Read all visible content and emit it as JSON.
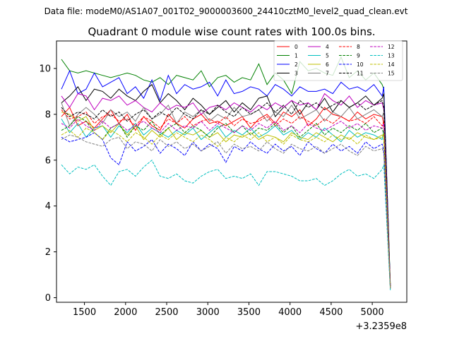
{
  "suptitle": "Data file: modeM0/AS1A07_001T02_9000003600_24410cztM0_level2_quad_clean.evt",
  "chart_data": {
    "type": "line",
    "title": "Quadrant 0 module wise count rates with 100.0s bins.",
    "xlabel": "",
    "ylabel": "",
    "x_offset_label": "+3.2359e8",
    "xlim": [
      1160,
      5420
    ],
    "ylim": [
      -0.2,
      11.2
    ],
    "xticks": [
      1500,
      2000,
      2500,
      3000,
      3500,
      4000,
      4500,
      5000
    ],
    "yticks": [
      0,
      2,
      4,
      6,
      8,
      10
    ],
    "grid": false,
    "legend_placement": "top-right",
    "legend_columns": 4,
    "x": [
      1220,
      1320,
      1420,
      1520,
      1620,
      1720,
      1820,
      1920,
      2020,
      2120,
      2220,
      2320,
      2420,
      2520,
      2620,
      2720,
      2820,
      2920,
      3020,
      3120,
      3220,
      3320,
      3420,
      3520,
      3620,
      3720,
      3820,
      3920,
      4020,
      4120,
      4220,
      4320,
      4420,
      4520,
      4620,
      4720,
      4820,
      4920,
      5020,
      5120,
      5140,
      5220
    ],
    "series": [
      {
        "name": "0",
        "color": "#ff0000",
        "dash": "solid",
        "values": [
          7.9,
          8.3,
          7.5,
          7.7,
          7.4,
          7.8,
          8.2,
          7.6,
          8.0,
          7.3,
          7.9,
          7.5,
          7.3,
          8.0,
          7.6,
          7.4,
          7.8,
          8.0,
          7.6,
          7.7,
          7.5,
          7.7,
          7.9,
          7.4,
          7.8,
          8.0,
          7.6,
          8.1,
          7.9,
          8.2,
          7.5,
          7.8,
          8.3,
          8.0,
          7.9,
          7.7,
          8.1,
          7.8,
          8.0,
          7.9,
          7.6,
          0.5
        ]
      },
      {
        "name": "1",
        "color": "#008000",
        "dash": "solid",
        "values": [
          10.4,
          9.9,
          9.8,
          9.9,
          9.8,
          9.7,
          9.6,
          9.7,
          9.8,
          9.7,
          9.5,
          9.4,
          9.6,
          9.3,
          9.7,
          9.6,
          9.5,
          9.9,
          9.2,
          9.6,
          9.7,
          9.4,
          9.6,
          9.5,
          10.2,
          9.3,
          9.8,
          9.5,
          8.9,
          10.3,
          9.9,
          10.0,
          9.8,
          9.7,
          10.5,
          9.6,
          9.9,
          9.5,
          9.8,
          9.3,
          9.1,
          0.6
        ]
      },
      {
        "name": "2",
        "color": "#0000ff",
        "dash": "solid",
        "values": [
          9.1,
          9.9,
          8.9,
          9.1,
          9.8,
          9.2,
          9.4,
          9.6,
          8.9,
          9.2,
          8.7,
          9.5,
          8.6,
          9.7,
          8.9,
          9.3,
          9.1,
          9.2,
          9.4,
          8.8,
          9.5,
          8.9,
          9.0,
          9.2,
          9.1,
          8.8,
          9.3,
          9.1,
          8.8,
          9.2,
          9.0,
          9.0,
          9.1,
          8.9,
          9.4,
          9.1,
          9.2,
          9.0,
          9.3,
          8.8,
          9.2,
          0.5
        ]
      },
      {
        "name": "3",
        "color": "#000000",
        "dash": "solid",
        "values": [
          8.5,
          8.8,
          9.2,
          8.6,
          9.1,
          9.0,
          8.7,
          9.1,
          8.8,
          8.6,
          9.0,
          9.3,
          8.5,
          8.9,
          8.6,
          8.2,
          8.7,
          8.4,
          8.0,
          8.3,
          8.6,
          8.1,
          8.5,
          8.2,
          8.7,
          8.8,
          7.9,
          8.3,
          8.6,
          8.0,
          8.5,
          8.2,
          8.7,
          8.1,
          8.6,
          8.3,
          8.5,
          8.8,
          8.4,
          8.7,
          8.9,
          0.5
        ]
      },
      {
        "name": "4",
        "color": "#bf00bf",
        "dash": "solid",
        "values": [
          8.8,
          8.3,
          8.9,
          8.8,
          8.2,
          8.7,
          8.6,
          8.8,
          8.4,
          8.6,
          8.3,
          8.1,
          8.5,
          8.2,
          8.4,
          8.3,
          8.5,
          8.0,
          8.3,
          8.4,
          8.2,
          8.5,
          8.3,
          8.1,
          8.4,
          8.2,
          8.5,
          8.3,
          8.6,
          8.4,
          8.5,
          8.2,
          8.9,
          8.6,
          8.4,
          8.8,
          8.3,
          8.6,
          8.4,
          8.5,
          8.2,
          0.5
        ]
      },
      {
        "name": "5",
        "color": "#00bfbf",
        "dash": "solid",
        "values": [
          7.8,
          7.2,
          7.6,
          7.0,
          7.4,
          7.5,
          7.0,
          7.5,
          7.2,
          7.6,
          7.1,
          7.4,
          7.2,
          7.0,
          7.3,
          7.1,
          7.4,
          6.9,
          7.2,
          7.5,
          7.0,
          7.3,
          7.1,
          7.4,
          7.0,
          7.2,
          7.5,
          7.1,
          7.3,
          6.9,
          7.2,
          7.0,
          7.4,
          7.1,
          6.8,
          7.3,
          7.0,
          7.2,
          7.1,
          6.9,
          7.3,
          0.4
        ]
      },
      {
        "name": "6",
        "color": "#bfbf00",
        "dash": "solid",
        "values": [
          8.1,
          8.0,
          7.7,
          7.9,
          7.3,
          7.5,
          7.2,
          7.6,
          7.1,
          7.5,
          6.9,
          7.3,
          7.0,
          7.4,
          6.9,
          7.2,
          7.1,
          7.3,
          7.0,
          7.2,
          6.8,
          7.1,
          7.0,
          7.2,
          6.9,
          7.1,
          7.0,
          6.8,
          7.2,
          7.0,
          6.9,
          7.2,
          7.0,
          6.8,
          7.1,
          6.9,
          7.2,
          7.0,
          6.9,
          7.1,
          7.0,
          0.4
        ]
      },
      {
        "name": "7",
        "color": "#808080",
        "dash": "solid",
        "values": [
          8.5,
          7.5,
          8.0,
          8.3,
          8.0,
          7.6,
          8.2,
          7.9,
          8.1,
          7.7,
          8.3,
          7.8,
          8.0,
          8.4,
          7.6,
          8.1,
          7.9,
          8.2,
          7.7,
          8.0,
          7.8,
          8.3,
          7.9,
          8.0,
          8.2,
          7.7,
          8.1,
          7.9,
          8.4,
          7.8,
          8.0,
          8.2,
          7.7,
          8.1,
          7.9,
          8.3,
          7.8,
          8.0,
          8.2,
          7.9,
          8.1,
          0.5
        ]
      },
      {
        "name": "8",
        "color": "#ff0000",
        "dash": "dashed",
        "values": [
          8.2,
          7.8,
          7.9,
          8.1,
          7.6,
          7.9,
          8.0,
          7.7,
          7.8,
          7.5,
          7.9,
          7.7,
          7.4,
          7.8,
          7.6,
          7.9,
          7.5,
          7.7,
          7.8,
          7.6,
          7.9,
          7.5,
          7.8,
          7.6,
          7.7,
          7.9,
          7.5,
          7.8,
          7.6,
          7.9,
          7.7,
          7.5,
          7.8,
          7.6,
          7.9,
          7.7,
          7.8,
          7.6,
          7.9,
          7.5,
          7.7,
          0.5
        ]
      },
      {
        "name": "9",
        "color": "#008000",
        "dash": "dashed",
        "values": [
          7.3,
          7.5,
          7.9,
          7.7,
          7.2,
          6.9,
          7.4,
          7.6,
          7.0,
          7.5,
          7.3,
          7.7,
          7.1,
          7.4,
          7.6,
          7.2,
          7.5,
          7.3,
          7.0,
          7.4,
          7.6,
          7.2,
          7.5,
          7.1,
          7.4,
          7.3,
          7.6,
          7.2,
          7.5,
          7.0,
          7.3,
          7.6,
          7.1,
          7.4,
          7.2,
          7.5,
          7.3,
          7.6,
          7.2,
          7.4,
          7.1,
          0.4
        ]
      },
      {
        "name": "10",
        "color": "#0000ff",
        "dash": "dashed",
        "values": [
          7.0,
          6.8,
          6.9,
          7.0,
          7.2,
          6.9,
          6.1,
          5.8,
          6.8,
          6.4,
          6.6,
          6.9,
          6.3,
          6.7,
          6.5,
          6.2,
          6.8,
          6.4,
          6.7,
          6.5,
          5.9,
          6.6,
          6.4,
          6.8,
          6.5,
          6.3,
          6.7,
          6.4,
          6.6,
          6.2,
          6.8,
          6.5,
          6.3,
          6.7,
          6.4,
          6.6,
          6.3,
          6.8,
          6.5,
          6.7,
          6.4,
          0.4
        ]
      },
      {
        "name": "11",
        "color": "#000000",
        "dash": "dashed",
        "values": [
          8.3,
          7.9,
          8.1,
          8.0,
          7.8,
          8.2,
          7.9,
          8.1,
          7.7,
          8.0,
          8.2,
          7.8,
          8.1,
          7.9,
          8.3,
          8.0,
          7.8,
          8.2,
          8.0,
          8.4,
          8.1,
          7.9,
          8.3,
          8.0,
          8.2,
          8.5,
          8.1,
          8.4,
          8.0,
          8.6,
          8.3,
          8.5,
          8.2,
          8.4,
          8.6,
          8.3,
          8.5,
          8.2,
          8.4,
          8.6,
          8.3,
          0.5
        ]
      },
      {
        "name": "12",
        "color": "#bf00bf",
        "dash": "dashed",
        "values": [
          7.6,
          7.4,
          7.8,
          7.5,
          7.3,
          7.7,
          7.4,
          7.6,
          7.3,
          7.5,
          7.7,
          7.4,
          7.2,
          7.6,
          7.3,
          7.5,
          7.4,
          7.7,
          7.3,
          7.6,
          7.4,
          7.2,
          7.5,
          7.3,
          7.6,
          7.4,
          7.7,
          7.3,
          7.5,
          7.2,
          7.6,
          7.4,
          7.3,
          7.5,
          7.7,
          7.4,
          7.6,
          7.3,
          7.5,
          7.4,
          7.6,
          0.4
        ]
      },
      {
        "name": "13",
        "color": "#00bfbf",
        "dash": "dashed",
        "values": [
          5.8,
          5.4,
          5.7,
          5.6,
          5.8,
          5.3,
          4.9,
          5.5,
          5.6,
          5.3,
          5.7,
          6.0,
          5.3,
          5.2,
          5.4,
          5.1,
          5.0,
          5.3,
          5.5,
          5.6,
          5.2,
          5.3,
          5.2,
          5.4,
          4.9,
          5.5,
          5.5,
          5.4,
          5.3,
          5.1,
          5.1,
          5.2,
          4.9,
          5.1,
          5.4,
          5.6,
          5.3,
          5.4,
          5.2,
          5.6,
          5.8,
          0.3
        ]
      },
      {
        "name": "14",
        "color": "#bfbf00",
        "dash": "dashed",
        "values": [
          7.1,
          7.3,
          7.0,
          7.4,
          7.2,
          6.9,
          7.3,
          7.1,
          6.8,
          7.2,
          7.0,
          6.7,
          7.1,
          6.9,
          7.2,
          7.0,
          6.8,
          7.1,
          6.9,
          6.6,
          7.0,
          6.8,
          7.1,
          6.9,
          7.2,
          6.8,
          7.0,
          6.7,
          7.1,
          6.9,
          6.8,
          7.0,
          6.8,
          7.1,
          6.9,
          7.0,
          6.7,
          7.1,
          6.9,
          7.0,
          7.2,
          0.4
        ]
      },
      {
        "name": "15",
        "color": "#808080",
        "dash": "dashed",
        "values": [
          6.9,
          7.1,
          7.0,
          6.8,
          6.7,
          6.6,
          6.9,
          7.0,
          6.5,
          6.8,
          6.7,
          6.4,
          6.9,
          6.6,
          6.8,
          6.5,
          6.7,
          6.4,
          6.6,
          6.8,
          6.3,
          6.7,
          6.5,
          6.6,
          6.4,
          6.8,
          6.5,
          6.3,
          6.7,
          6.5,
          6.4,
          6.6,
          6.3,
          6.5,
          6.7,
          6.4,
          6.2,
          6.6,
          6.4,
          6.5,
          6.3,
          0.4
        ]
      }
    ]
  }
}
